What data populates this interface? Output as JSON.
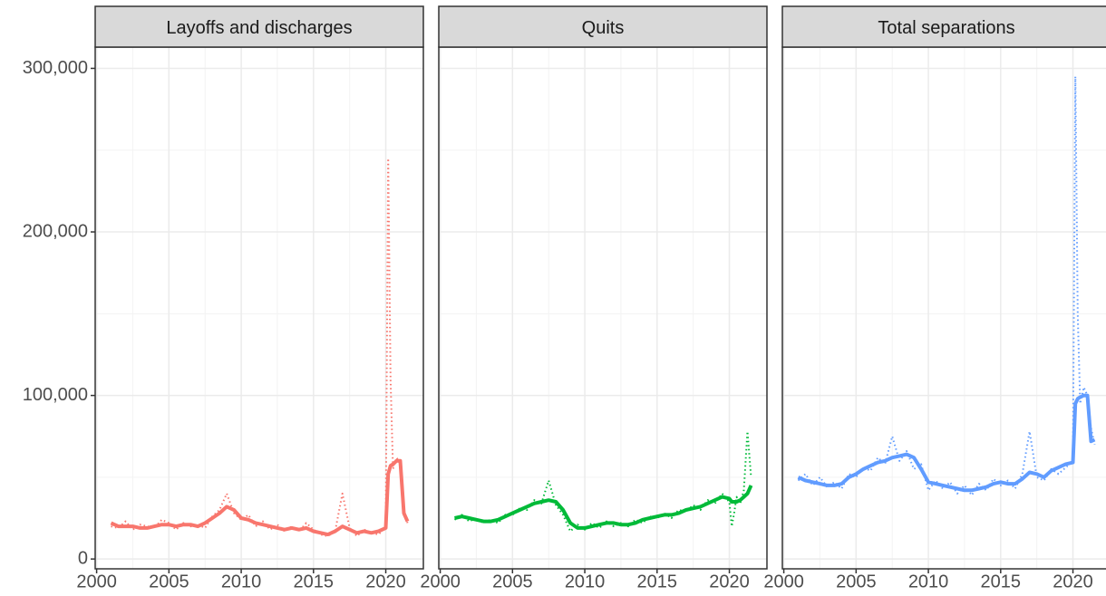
{
  "chart_data": [
    {
      "type": "line",
      "title": "Layoffs and discharges",
      "x": [
        2001,
        2001.5,
        2002,
        2002.5,
        2003,
        2003.5,
        2004,
        2004.5,
        2005,
        2005.5,
        2006,
        2006.5,
        2007,
        2007.5,
        2008,
        2008.5,
        2009,
        2009.5,
        2010,
        2010.5,
        2011,
        2011.5,
        2012,
        2012.5,
        2013,
        2013.5,
        2014,
        2014.5,
        2015,
        2015.5,
        2016,
        2016.5,
        2017,
        2017.5,
        2018,
        2018.5,
        2019,
        2019.5,
        2020,
        2020.17,
        2020.33,
        2020.5,
        2020.75,
        2021,
        2021.25,
        2021.5
      ],
      "series": [
        {
          "color": "#f8766d",
          "style": "dotted",
          "values": [
            20000,
            19000,
            23000,
            18000,
            21000,
            20000,
            19000,
            24000,
            22000,
            18000,
            22000,
            20000,
            21000,
            19000,
            26000,
            30000,
            40000,
            28000,
            24000,
            27000,
            20000,
            23000,
            18000,
            21000,
            17000,
            20000,
            17000,
            22000,
            18000,
            15000,
            14000,
            17000,
            40000,
            19000,
            14000,
            18000,
            16000,
            15000,
            20000,
            245000,
            110000,
            55000,
            62000,
            58000,
            30000,
            22000
          ]
        },
        {
          "color": "#f8766d",
          "style": "solid",
          "values": [
            22000,
            20000,
            20000,
            20000,
            19000,
            19000,
            20000,
            21000,
            21000,
            20000,
            21000,
            21000,
            20000,
            22000,
            25000,
            28000,
            32000,
            30000,
            25000,
            24000,
            22000,
            21000,
            20000,
            19000,
            18000,
            19000,
            18000,
            19000,
            17000,
            16000,
            15000,
            17000,
            20000,
            18000,
            16000,
            17000,
            16000,
            17000,
            19000,
            52000,
            57000,
            58000,
            60000,
            60000,
            28000,
            23000
          ]
        }
      ],
      "xlim": [
        1999.9,
        2022.6
      ],
      "xticks": [
        2000,
        2005,
        2010,
        2015,
        2020
      ],
      "xminor": [
        2002.5,
        2007.5,
        2012.5,
        2017.5
      ],
      "ylim": [
        -6000,
        313000
      ],
      "yticks": [
        0,
        {
          "value": 100000,
          "label": "100,000"
        },
        {
          "value": 200000,
          "label": "200,000"
        },
        {
          "value": 300000,
          "label": "300,000"
        }
      ],
      "yminor": [
        50000,
        150000,
        250000
      ],
      "grid": true
    },
    {
      "type": "line",
      "title": "Quits",
      "x": [
        2001,
        2001.5,
        2002,
        2002.5,
        2003,
        2003.5,
        2004,
        2004.5,
        2005,
        2005.5,
        2006,
        2006.5,
        2007,
        2007.5,
        2008,
        2008.5,
        2009,
        2009.5,
        2010,
        2010.5,
        2011,
        2011.5,
        2012,
        2012.5,
        2013,
        2013.5,
        2014,
        2014.5,
        2015,
        2015.5,
        2016,
        2016.5,
        2017,
        2017.5,
        2018,
        2018.5,
        2019,
        2019.5,
        2020,
        2020.17,
        2020.33,
        2020.5,
        2020.75,
        2021,
        2021.25,
        2021.5
      ],
      "series": [
        {
          "color": "#00ba38",
          "style": "dotted",
          "values": [
            24000,
            27000,
            23000,
            25000,
            22000,
            24000,
            22000,
            27000,
            27000,
            31000,
            30000,
            36000,
            34000,
            48000,
            33000,
            27000,
            17000,
            21000,
            18000,
            22000,
            19000,
            23000,
            20000,
            22000,
            20000,
            24000,
            22000,
            26000,
            25000,
            28000,
            25000,
            30000,
            29000,
            33000,
            30000,
            36000,
            34000,
            40000,
            35000,
            20000,
            28000,
            38000,
            34000,
            42000,
            78000,
            50000
          ]
        },
        {
          "color": "#00ba38",
          "style": "solid",
          "values": [
            25000,
            26000,
            25000,
            24000,
            23000,
            23000,
            24000,
            26000,
            28000,
            30000,
            32000,
            34000,
            35000,
            36000,
            35000,
            30000,
            22000,
            19000,
            19000,
            20000,
            21000,
            22000,
            22000,
            21000,
            21000,
            22000,
            24000,
            25000,
            26000,
            27000,
            27000,
            28000,
            30000,
            31000,
            32000,
            34000,
            36000,
            38000,
            37000,
            35000,
            35000,
            35000,
            36000,
            38000,
            40000,
            45000
          ]
        }
      ],
      "xlim": [
        1999.9,
        2022.6
      ],
      "xticks": [
        2000,
        2005,
        2010,
        2015,
        2020
      ],
      "xminor": [
        2002.5,
        2007.5,
        2012.5,
        2017.5
      ],
      "ylim": [
        -6000,
        313000
      ],
      "yticks": [
        0,
        {
          "value": 100000,
          "label": "100,000"
        },
        {
          "value": 200000,
          "label": "200,000"
        },
        {
          "value": 300000,
          "label": "300,000"
        }
      ],
      "yminor": [
        50000,
        150000,
        250000
      ],
      "grid": true
    },
    {
      "type": "line",
      "title": "Total separations",
      "x": [
        2001,
        2001.5,
        2002,
        2002.5,
        2003,
        2003.5,
        2004,
        2004.5,
        2005,
        2005.5,
        2006,
        2006.5,
        2007,
        2007.5,
        2008,
        2008.5,
        2009,
        2009.5,
        2010,
        2010.5,
        2011,
        2011.5,
        2012,
        2012.5,
        2013,
        2013.5,
        2014,
        2014.5,
        2015,
        2015.5,
        2016,
        2016.5,
        2017,
        2017.5,
        2018,
        2018.5,
        2019,
        2019.5,
        2020,
        2020.17,
        2020.33,
        2020.5,
        2020.75,
        2021,
        2021.25,
        2021.5
      ],
      "series": [
        {
          "color": "#619cff",
          "style": "dotted",
          "values": [
            48000,
            52000,
            45000,
            50000,
            44000,
            47000,
            43000,
            52000,
            50000,
            56000,
            54000,
            62000,
            58000,
            75000,
            60000,
            66000,
            55000,
            58000,
            42000,
            48000,
            43000,
            47000,
            40000,
            45000,
            39000,
            46000,
            42000,
            49000,
            45000,
            48000,
            43000,
            52000,
            78000,
            50000,
            48000,
            55000,
            52000,
            56000,
            60000,
            295000,
            150000,
            95000,
            105000,
            100000,
            80000,
            70000
          ]
        },
        {
          "color": "#619cff",
          "style": "solid",
          "values": [
            50000,
            48000,
            47000,
            46000,
            45000,
            45000,
            46000,
            50000,
            52000,
            55000,
            57000,
            59000,
            60000,
            62000,
            63000,
            64000,
            62000,
            55000,
            47000,
            46000,
            45000,
            44000,
            43000,
            42000,
            42000,
            43000,
            44000,
            46000,
            47000,
            46000,
            46000,
            49000,
            53000,
            52000,
            50000,
            54000,
            56000,
            58000,
            59000,
            95000,
            98000,
            99000,
            100000,
            100000,
            72000,
            73000
          ]
        }
      ],
      "xlim": [
        1999.9,
        2022.6
      ],
      "xticks": [
        2000,
        2005,
        2010,
        2015,
        2020
      ],
      "xminor": [
        2002.5,
        2007.5,
        2012.5,
        2017.5
      ],
      "ylim": [
        -6000,
        313000
      ],
      "yticks": [
        0,
        {
          "value": 100000,
          "label": "100,000"
        },
        {
          "value": 200000,
          "label": "200,000"
        },
        {
          "value": 300000,
          "label": "300,000"
        }
      ],
      "yminor": [
        50000,
        150000,
        250000
      ],
      "grid": true
    }
  ]
}
